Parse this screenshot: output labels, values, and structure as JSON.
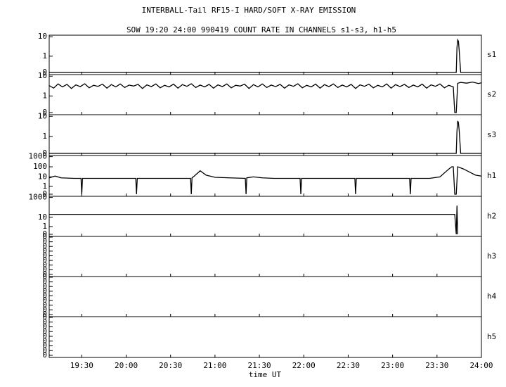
{
  "chart_data": {
    "type": "line",
    "title": "INTERBALL-Tail RF15-I HARD/SOFT X-RAY EMISSION",
    "subtitle": "SOW 19:20 24:00 990419  COUNT RATE IN CHANNELS s1-s3, h1-h5",
    "xlabel": "time UT",
    "xlim": [
      1148,
      1440
    ],
    "xticks": [
      {
        "value": 1170,
        "label": "19:30"
      },
      {
        "value": 1200,
        "label": "20:00"
      },
      {
        "value": 1230,
        "label": "20:30"
      },
      {
        "value": 1260,
        "label": "21:00"
      },
      {
        "value": 1290,
        "label": "21:30"
      },
      {
        "value": 1320,
        "label": "22:00"
      },
      {
        "value": 1350,
        "label": "22:30"
      },
      {
        "value": 1380,
        "label": "23:00"
      },
      {
        "value": 1410,
        "label": "23:30"
      },
      {
        "value": 1440,
        "label": "24:00"
      }
    ],
    "panels": [
      {
        "name": "s1",
        "yscale": "symlog",
        "linthresh": 0.2,
        "ylim": [
          0,
          11
        ],
        "yticks": [
          0,
          1,
          10
        ],
        "series": [
          {
            "color": "#000000",
            "x": [
              1148,
              1422,
              1423,
              1423.5,
              1424,
              1424.5,
              1425,
              1426,
              1440
            ],
            "values": [
              0,
              0,
              0,
              3,
              7,
              6,
              2,
              0,
              0
            ]
          }
        ]
      },
      {
        "name": "s2",
        "yscale": "symlog",
        "linthresh": 0.2,
        "ylim": [
          0,
          11
        ],
        "yticks": [
          0,
          1,
          10
        ],
        "series": [
          {
            "color": "#000000",
            "x": [
              1148,
              1151,
              1154,
              1157,
              1160,
              1163,
              1166,
              1169,
              1172,
              1175,
              1178,
              1181,
              1184,
              1187,
              1190,
              1193,
              1196,
              1199,
              1202,
              1205,
              1208,
              1211,
              1214,
              1217,
              1220,
              1223,
              1226,
              1229,
              1232,
              1235,
              1238,
              1241,
              1244,
              1247,
              1250,
              1253,
              1256,
              1259,
              1262,
              1265,
              1268,
              1271,
              1274,
              1277,
              1280,
              1283,
              1286,
              1289,
              1292,
              1295,
              1298,
              1301,
              1304,
              1307,
              1310,
              1313,
              1316,
              1319,
              1322,
              1325,
              1328,
              1331,
              1334,
              1337,
              1340,
              1343,
              1346,
              1349,
              1352,
              1355,
              1358,
              1361,
              1364,
              1367,
              1370,
              1373,
              1376,
              1379,
              1382,
              1385,
              1388,
              1391,
              1394,
              1397,
              1400,
              1403,
              1406,
              1409,
              1412,
              1415,
              1418,
              1421,
              1422,
              1423,
              1424,
              1426,
              1430,
              1434,
              1438,
              1440
            ],
            "values": [
              3.5,
              2.6,
              4.2,
              3.0,
              4.0,
              2.5,
              3.8,
              3.1,
              4.3,
              2.7,
              3.6,
              3.2,
              4.1,
              2.6,
              3.9,
              3.0,
              4.2,
              2.8,
              3.7,
              3.3,
              4.0,
              2.5,
              3.8,
              3.1,
              4.2,
              2.7,
              3.6,
              3.0,
              4.1,
              2.6,
              3.9,
              3.2,
              4.3,
              2.8,
              3.7,
              3.0,
              4.0,
              2.6,
              3.8,
              3.1,
              4.2,
              2.7,
              3.6,
              3.3,
              4.1,
              2.5,
              3.9,
              3.0,
              4.2,
              2.8,
              3.7,
              3.1,
              4.0,
              2.6,
              3.8,
              3.2,
              4.3,
              2.7,
              3.6,
              3.0,
              4.1,
              2.6,
              3.9,
              3.1,
              4.2,
              2.8,
              3.7,
              3.0,
              4.0,
              2.5,
              3.8,
              3.2,
              4.1,
              2.7,
              3.6,
              3.0,
              4.2,
              2.6,
              3.9,
              3.1,
              4.0,
              2.8,
              3.7,
              3.0,
              4.1,
              2.6,
              3.8,
              3.2,
              4.2,
              2.7,
              3.6,
              3.0,
              0,
              0,
              4.5,
              5.0,
              4.6,
              5.2,
              4.4,
              4.8
            ]
          }
        ]
      },
      {
        "name": "s3",
        "yscale": "symlog",
        "linthresh": 0.2,
        "ylim": [
          0,
          11
        ],
        "yticks": [
          0,
          1,
          10
        ],
        "series": [
          {
            "color": "#000000",
            "x": [
              1148,
              1422,
              1423,
              1423.5,
              1424,
              1424.5,
              1425,
              1426,
              1440
            ],
            "values": [
              0,
              0,
              0,
              2,
              6,
              5,
              2,
              0,
              0
            ]
          }
        ]
      },
      {
        "name": "h1",
        "yscale": "symlog",
        "linthresh": 0.2,
        "ylim": [
          0,
          1100
        ],
        "yticks": [
          0,
          1,
          10,
          100,
          1000
        ],
        "series": [
          {
            "color": "#000000",
            "x": [
              1148,
              1152,
              1156,
              1165,
              1169.5,
              1170,
              1170.5,
              1180,
              1190,
              1200,
              1206.5,
              1207,
              1207.5,
              1220,
              1230,
              1243.5,
              1244,
              1244.5,
              1246,
              1250,
              1254,
              1260,
              1270,
              1280.5,
              1281,
              1281.5,
              1286,
              1292,
              1300,
              1317.5,
              1318,
              1318.5,
              1330,
              1354.5,
              1355,
              1355.5,
              1370,
              1391.5,
              1392,
              1392.5,
              1405,
              1412,
              1418,
              1420,
              1421,
              1422,
              1423,
              1424,
              1428,
              1432,
              1436,
              1440
            ],
            "values": [
              8,
              12,
              8,
              7,
              7,
              0,
              7,
              7,
              7,
              7,
              7,
              0,
              7,
              7,
              7,
              7,
              0,
              8,
              12,
              40,
              15,
              9,
              8,
              7,
              0,
              8,
              10,
              8,
              7,
              7,
              0,
              7,
              7,
              7,
              0,
              7,
              7,
              7,
              0,
              7,
              7,
              10,
              60,
              100,
              100,
              0,
              0,
              100,
              60,
              30,
              15,
              12
            ]
          }
        ]
      },
      {
        "name": "h2",
        "yscale": "symlog",
        "linthresh": 0.2,
        "ylim": [
          0,
          1100
        ],
        "yticks": [
          0,
          1,
          10,
          1000
        ],
        "series": [
          {
            "color": "#000000",
            "x": [
              1148,
              1422,
              1423,
              1423.5,
              1424
            ],
            "values": [
              20,
              20,
              0,
              150,
              0
            ]
          }
        ]
      },
      {
        "name": "h3",
        "yscale": "linear",
        "ylim": [
          0,
          0.4
        ],
        "yticks": [
          {
            "value": 0,
            "label": "0"
          },
          {
            "value": 0.05,
            "label": "0"
          },
          {
            "value": 0.1,
            "label": "0"
          },
          {
            "value": 0.15,
            "label": "0"
          },
          {
            "value": 0.2,
            "label": "0"
          },
          {
            "value": 0.25,
            "label": "0"
          },
          {
            "value": 0.3,
            "label": "0"
          },
          {
            "value": 0.35,
            "label": "0"
          },
          {
            "value": 0.4,
            "label": "0"
          }
        ],
        "series": []
      },
      {
        "name": "h4",
        "yscale": "linear",
        "ylim": [
          0,
          0.4
        ],
        "yticks": [
          {
            "value": 0,
            "label": "0"
          },
          {
            "value": 0.05,
            "label": "0"
          },
          {
            "value": 0.1,
            "label": "0"
          },
          {
            "value": 0.15,
            "label": "0"
          },
          {
            "value": 0.2,
            "label": "0"
          },
          {
            "value": 0.25,
            "label": "0"
          },
          {
            "value": 0.3,
            "label": "0"
          },
          {
            "value": 0.35,
            "label": "0"
          },
          {
            "value": 0.4,
            "label": "0"
          }
        ],
        "series": []
      },
      {
        "name": "h5",
        "yscale": "linear",
        "ylim": [
          0,
          0.4
        ],
        "yticks": [
          {
            "value": 0,
            "label": "0"
          },
          {
            "value": 0.05,
            "label": "0"
          },
          {
            "value": 0.1,
            "label": "0"
          },
          {
            "value": 0.15,
            "label": "0"
          },
          {
            "value": 0.2,
            "label": "0"
          },
          {
            "value": 0.25,
            "label": "0"
          },
          {
            "value": 0.3,
            "label": "0"
          },
          {
            "value": 0.35,
            "label": "0"
          },
          {
            "value": 0.4,
            "label": "0"
          }
        ],
        "series": []
      }
    ]
  }
}
